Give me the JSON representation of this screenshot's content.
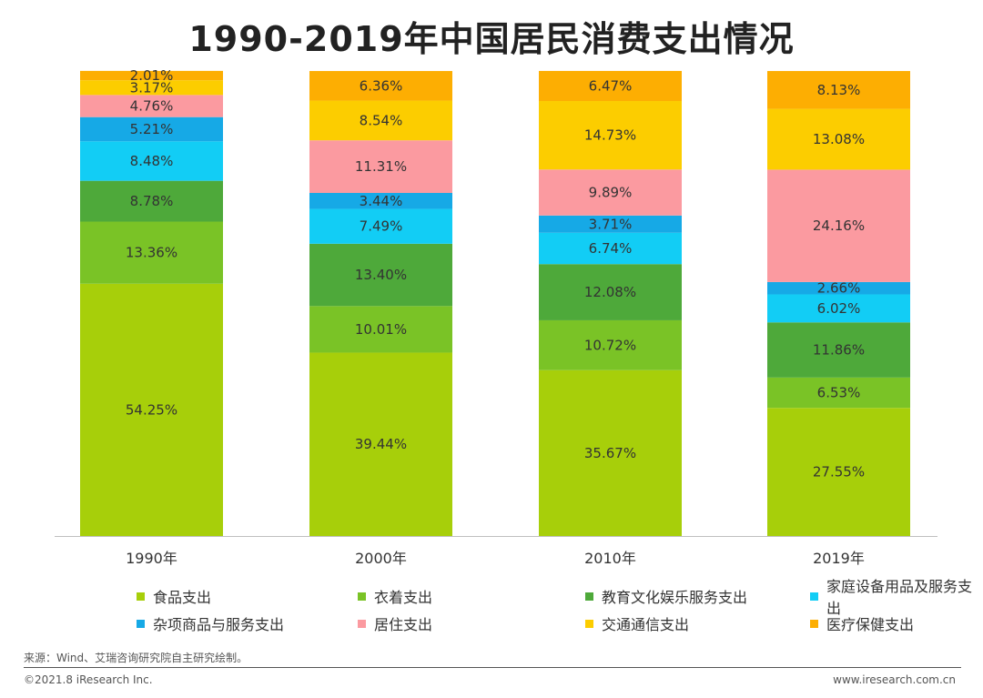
{
  "title": "1990-2019年中国居民消费支出情况",
  "source": "来源：Wind、艾瑞咨询研究院自主研究绘制。",
  "footer": {
    "copyright": "©2021.8 iResearch Inc.",
    "website": "www.iresearch.com.cn"
  },
  "chart_data": {
    "type": "bar",
    "stacked": true,
    "categories": [
      "1990年",
      "2000年",
      "2010年",
      "2019年"
    ],
    "series": [
      {
        "name": "食品支出",
        "color": "#a7cf0a",
        "values": [
          54.25,
          39.44,
          35.67,
          27.55
        ],
        "labels": [
          "54.25%",
          "39.44%",
          "35.67%",
          "27.55%"
        ]
      },
      {
        "name": "衣着支出",
        "color": "#7ac326",
        "values": [
          13.36,
          10.01,
          10.72,
          6.53
        ],
        "labels": [
          "13.36%",
          "10.01%",
          "10.72%",
          "6.53%"
        ]
      },
      {
        "name": "教育文化娱乐服务支出",
        "color": "#4ea93a",
        "values": [
          8.78,
          13.4,
          12.08,
          11.86
        ],
        "labels": [
          "8.78%",
          "13.40%",
          "12.08%",
          "11.86%"
        ]
      },
      {
        "name": "家庭设备用品及服务支出",
        "color": "#12cdf5",
        "values": [
          8.48,
          7.49,
          6.74,
          6.02
        ],
        "labels": [
          "8.48%",
          "7.49%",
          "6.74%",
          "6.02%"
        ]
      },
      {
        "name": "杂项商品与服务支出",
        "color": "#16a9e6",
        "values": [
          5.21,
          3.44,
          3.71,
          2.66
        ],
        "labels": [
          "5.21%",
          "3.44%",
          "3.71%",
          "2.66%"
        ]
      },
      {
        "name": "居住支出",
        "color": "#fb9aa0",
        "values": [
          4.76,
          11.31,
          9.89,
          24.16
        ],
        "labels": [
          "4.76%",
          "11.31%",
          "9.89%",
          "24.16%"
        ]
      },
      {
        "name": "交通通信支出",
        "color": "#fccd00",
        "values": [
          3.17,
          8.54,
          14.73,
          13.08
        ],
        "labels": [
          "3.17%",
          "8.54%",
          "14.73%",
          "13.08%"
        ]
      },
      {
        "name": "医疗保健支出",
        "color": "#fdae02",
        "values": [
          2.01,
          6.36,
          6.47,
          8.13
        ],
        "labels": [
          "2.01%",
          "6.36%",
          "6.47%",
          "8.13%"
        ]
      }
    ],
    "ylim": [
      0,
      100
    ],
    "grid": false,
    "legend_position": "bottom",
    "xlabel": "",
    "ylabel": ""
  }
}
